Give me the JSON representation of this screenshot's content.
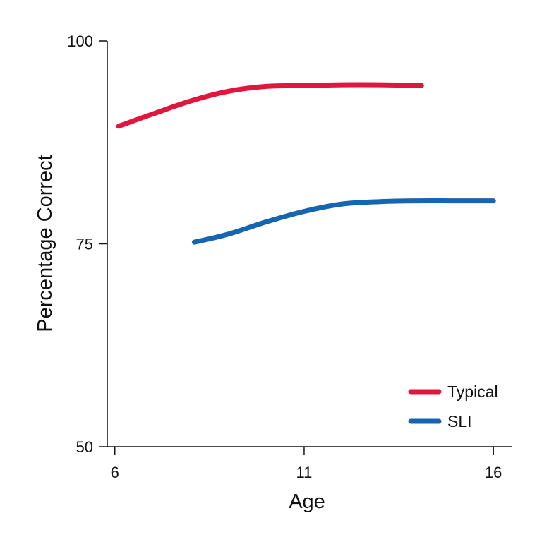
{
  "chart_data": {
    "type": "line",
    "title": "",
    "xlabel": "Age",
    "ylabel": "Percentage Correct",
    "xlim": [
      5.8,
      16.5
    ],
    "ylim": [
      50,
      100
    ],
    "xticks": [
      6,
      11,
      16
    ],
    "yticks": [
      50,
      75,
      100
    ],
    "grid": false,
    "legend_position": "bottom-right",
    "series": [
      {
        "name": "Typical",
        "color": "#e0173d",
        "x": [
          6.1,
          7,
          8,
          9,
          10,
          11,
          12,
          13,
          14.1
        ],
        "y": [
          89.5,
          91,
          92.6,
          93.8,
          94.4,
          94.5,
          94.6,
          94.6,
          94.5
        ]
      },
      {
        "name": "SLI",
        "color": "#1565b0",
        "x": [
          8.1,
          9,
          10,
          11,
          12,
          13,
          14,
          15,
          16
        ],
        "y": [
          75.2,
          76.2,
          77.7,
          79,
          79.9,
          80.2,
          80.3,
          80.3,
          80.3
        ]
      }
    ]
  }
}
